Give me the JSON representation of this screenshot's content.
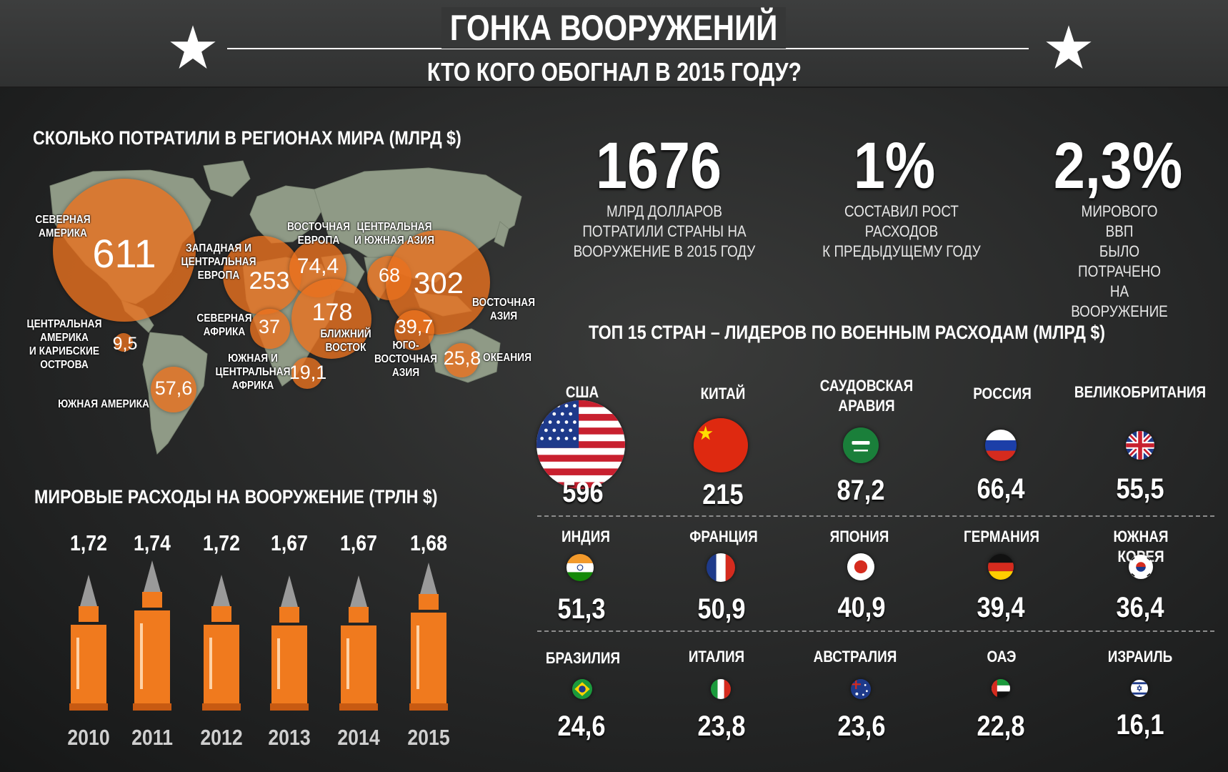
{
  "header": {
    "title": "ГОНКА ВООРУЖЕНИЙ",
    "subtitle": "КТО КОГО ОБОГНАЛ В 2015 ГОДУ?"
  },
  "regions": {
    "title": "СКОЛЬКО ПОТРАТИЛИ В РЕГИОНАХ МИРА (МЛРД $)",
    "items": [
      {
        "name": "СЕВЕРНАЯ\nАМЕРИКА",
        "value": "611"
      },
      {
        "name": "ЗАПАДНАЯ И\nЦЕНТРАЛЬНАЯ\nЕВРОПА",
        "value": "253"
      },
      {
        "name": "ВОСТОЧНАЯ\nЕВРОПА",
        "value": "74,4"
      },
      {
        "name": "ЦЕНТРАЛЬНАЯ\nИ ЮЖНАЯ АЗИЯ",
        "value": "68"
      },
      {
        "name": "ВОСТОЧНАЯ\nАЗИЯ",
        "value": "302"
      },
      {
        "name": "СЕВЕРНАЯ\nАФРИКА",
        "value": "37"
      },
      {
        "name": "БЛИЖНИЙ\nВОСТОК",
        "value": "178"
      },
      {
        "name": "ЮГО-\nВОСТОЧНАЯ\nАЗИЯ",
        "value": "39,7"
      },
      {
        "name": "ОКЕАНИЯ",
        "value": "25,8"
      },
      {
        "name": "ЦЕНТРАЛЬНАЯ\nАМЕРИКА\nИ КАРИБСКИЕ\nОСТРОВА",
        "value": "9,5"
      },
      {
        "name": "ЮЖНАЯ И\nЦЕНТРАЛЬНАЯ\nАФРИКА",
        "value": "19,1"
      },
      {
        "name": "ЮЖНАЯ АМЕРИКА",
        "value": "57,6"
      }
    ]
  },
  "stats": [
    {
      "value": "1676",
      "text": "МЛРД ДОЛЛАРОВ\nПОТРАТИЛИ СТРАНЫ НА\nВООРУЖЕНИЕ В 2015 ГОДУ"
    },
    {
      "value": "1%",
      "text": "СОСТАВИЛ РОСТ\nРАСХОДОВ\nК ПРЕДЫДУЩЕМУ ГОДУ"
    },
    {
      "value": "2,3%",
      "text": "МИРОВОГО ВВП\nБЫЛО ПОТРАЧЕНО НА\nВООРУЖЕНИЕ"
    }
  ],
  "top15": {
    "title": "ТОП 15 СТРАН – ЛИДЕРОВ ПО ВОЕННЫМ РАСХОДАМ (МЛРД $)",
    "countries": [
      {
        "name": "США",
        "value": "596",
        "flag": "usa-flag-icon"
      },
      {
        "name": "КИТАЙ",
        "value": "215",
        "flag": "china-flag-icon"
      },
      {
        "name": "САУДОВСКАЯ\nАРАВИЯ",
        "value": "87,2",
        "flag": "saudi-arabia-flag-icon"
      },
      {
        "name": "РОССИЯ",
        "value": "66,4",
        "flag": "russia-flag-icon"
      },
      {
        "name": "ВЕЛИКОБРИТАНИЯ",
        "value": "55,5",
        "flag": "uk-flag-icon"
      },
      {
        "name": "ИНДИЯ",
        "value": "51,3",
        "flag": "india-flag-icon"
      },
      {
        "name": "ФРАНЦИЯ",
        "value": "50,9",
        "flag": "france-flag-icon"
      },
      {
        "name": "ЯПОНИЯ",
        "value": "40,9",
        "flag": "japan-flag-icon"
      },
      {
        "name": "ГЕРМАНИЯ",
        "value": "39,4",
        "flag": "germany-flag-icon"
      },
      {
        "name": "ЮЖНАЯ КОРЕЯ",
        "value": "36,4",
        "flag": "south-korea-flag-icon"
      },
      {
        "name": "БРАЗИЛИЯ",
        "value": "24,6",
        "flag": "brazil-flag-icon"
      },
      {
        "name": "ИТАЛИЯ",
        "value": "23,8",
        "flag": "italy-flag-icon"
      },
      {
        "name": "АВСТРАЛИЯ",
        "value": "23,6",
        "flag": "australia-flag-icon"
      },
      {
        "name": "ОАЭ",
        "value": "22,8",
        "flag": "uae-flag-icon"
      },
      {
        "name": "ИЗРАИЛЬ",
        "value": "16,1",
        "flag": "israel-flag-icon"
      }
    ]
  },
  "world_spending": {
    "title": "МИРОВЫЕ РАСХОДЫ НА ВООРУЖЕНИЕ (ТРЛН $)",
    "years": [
      "2010",
      "2011",
      "2012",
      "2013",
      "2014",
      "2015"
    ],
    "values": [
      "1,72",
      "1,74",
      "1,72",
      "1,67",
      "1,67",
      "1,68"
    ]
  },
  "colors": {
    "accent": "#e8701e",
    "bullet": "#f07a1e",
    "bullet_tip": "#9a9a9a",
    "map": "#8f9a86",
    "background": "#2b2c2c"
  }
}
